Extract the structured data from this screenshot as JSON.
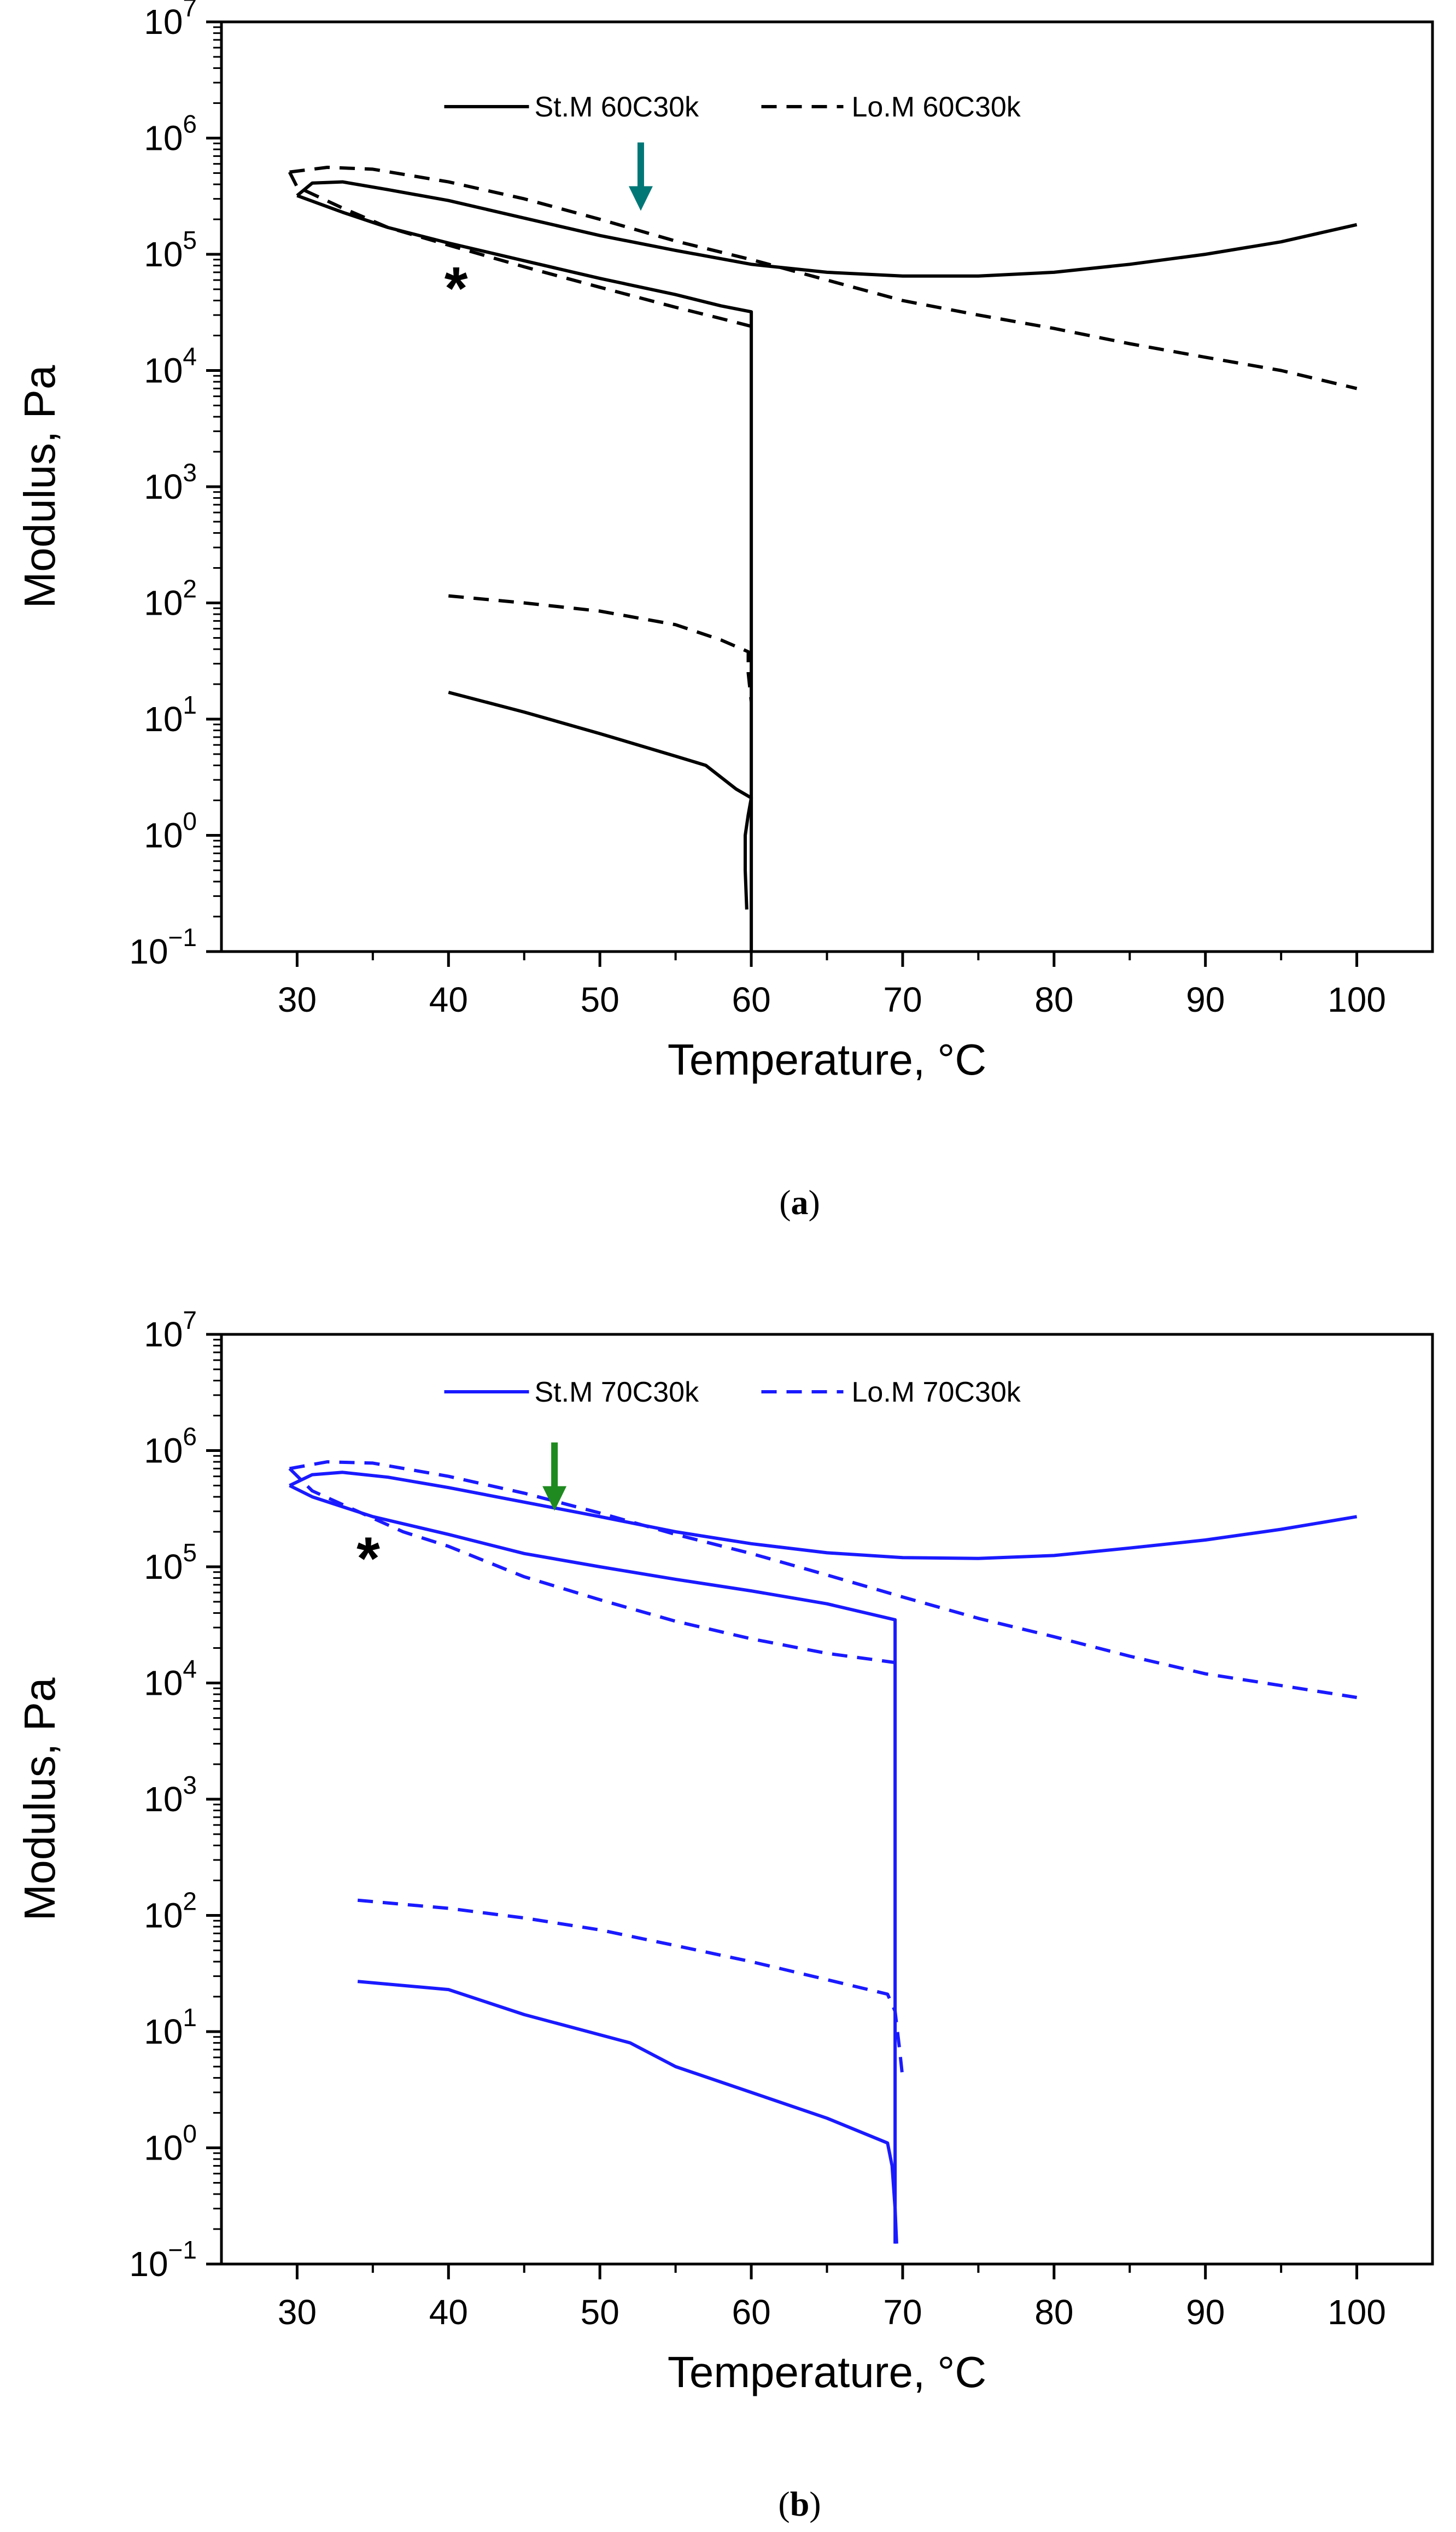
{
  "chart_data": [
    {
      "id": "a",
      "type": "line",
      "caption_open": "(",
      "caption_letter": "a",
      "caption_close": ")",
      "xlabel": "Temperature, °C",
      "ylabel": "Modulus, Pa",
      "xlim": [
        25,
        105
      ],
      "ylim_log10": [
        -1,
        7
      ],
      "x_ticks": [
        30,
        40,
        50,
        60,
        70,
        80,
        90,
        100
      ],
      "x_tick_labels": [
        "30",
        "40",
        "50",
        "60",
        "70",
        "80",
        "90",
        "100"
      ],
      "y_ticks_log10": [
        -1,
        0,
        1,
        2,
        3,
        4,
        5,
        6,
        7
      ],
      "y_tick_labels": [
        {
          "base": "10",
          "exp": "−1"
        },
        {
          "base": "10",
          "exp": "0"
        },
        {
          "base": "10",
          "exp": "1"
        },
        {
          "base": "10",
          "exp": "2"
        },
        {
          "base": "10",
          "exp": "3"
        },
        {
          "base": "10",
          "exp": "4"
        },
        {
          "base": "10",
          "exp": "5"
        },
        {
          "base": "10",
          "exp": "6"
        },
        {
          "base": "10",
          "exp": "7"
        }
      ],
      "line_color": "#000000",
      "arrow_color": "#007777",
      "arrow_at": {
        "x": 52.7,
        "y": 250000
      },
      "star_at": {
        "x": 40.5,
        "y": 65000
      },
      "legend_position": "top-center",
      "series": [
        {
          "name": "St.M 60C30k",
          "style": "solid",
          "segments": [
            [
              [
                30,
                320000
              ],
              [
                33,
                230000
              ],
              [
                36,
                170000
              ],
              [
                40,
                125000
              ],
              [
                45,
                88000
              ],
              [
                50,
                62000
              ],
              [
                55,
                45000
              ],
              [
                58,
                36000
              ],
              [
                60,
                32000
              ],
              [
                60,
                0.1
              ]
            ],
            [
              [
                30,
                320000
              ],
              [
                31,
                410000
              ],
              [
                33,
                420000
              ],
              [
                36,
                360000
              ],
              [
                40,
                290000
              ],
              [
                45,
                205000
              ],
              [
                50,
                145000
              ],
              [
                55,
                108000
              ],
              [
                60,
                82000
              ],
              [
                65,
                70000
              ],
              [
                70,
                65000
              ],
              [
                75,
                65000
              ],
              [
                80,
                70000
              ],
              [
                85,
                82000
              ],
              [
                90,
                100000
              ],
              [
                95,
                128000
              ],
              [
                100,
                180000
              ]
            ],
            [
              [
                40,
                17
              ],
              [
                45,
                11.5
              ],
              [
                50,
                7.5
              ],
              [
                55,
                4.8
              ],
              [
                57,
                4
              ],
              [
                59,
                2.5
              ],
              [
                60,
                2.1
              ],
              [
                59.8,
                1.5
              ],
              [
                59.6,
                1
              ],
              [
                59.6,
                0.5
              ],
              [
                59.7,
                0.23
              ]
            ]
          ]
        },
        {
          "name": "Lo.M 60C30k",
          "style": "dashed",
          "segments": [
            [
              [
                29.5,
                510000
              ],
              [
                32,
                560000
              ],
              [
                35,
                540000
              ],
              [
                40,
                420000
              ],
              [
                45,
                300000
              ],
              [
                50,
                200000
              ],
              [
                55,
                130000
              ],
              [
                60,
                90000
              ],
              [
                65,
                60000
              ],
              [
                70,
                40000
              ],
              [
                75,
                30000
              ],
              [
                80,
                23000
              ],
              [
                85,
                17000
              ],
              [
                90,
                13000
              ],
              [
                95,
                10000
              ],
              [
                100,
                7000
              ]
            ],
            [
              [
                29.5,
                510000
              ],
              [
                30,
                380000
              ],
              [
                33,
                250000
              ],
              [
                36,
                170000
              ],
              [
                40,
                120000
              ],
              [
                45,
                78000
              ],
              [
                50,
                52000
              ],
              [
                55,
                35000
              ],
              [
                58,
                28000
              ],
              [
                60,
                24000
              ]
            ],
            [
              [
                40,
                115
              ],
              [
                45,
                100
              ],
              [
                50,
                85
              ],
              [
                55,
                65
              ],
              [
                58,
                48
              ],
              [
                59.8,
                38
              ],
              [
                59.8,
                25
              ],
              [
                60,
                14
              ]
            ]
          ]
        }
      ]
    },
    {
      "id": "b",
      "type": "line",
      "caption_open": "(",
      "caption_letter": "b",
      "caption_close": ")",
      "xlabel": "Temperature, °C",
      "ylabel": "Modulus, Pa",
      "xlim": [
        25,
        105
      ],
      "ylim_log10": [
        -1,
        7
      ],
      "x_ticks": [
        30,
        40,
        50,
        60,
        70,
        80,
        90,
        100
      ],
      "x_tick_labels": [
        "30",
        "40",
        "50",
        "60",
        "70",
        "80",
        "90",
        "100"
      ],
      "y_ticks_log10": [
        -1,
        0,
        1,
        2,
        3,
        4,
        5,
        6,
        7
      ],
      "y_tick_labels": [
        {
          "base": "10",
          "exp": "−1"
        },
        {
          "base": "10",
          "exp": "0"
        },
        {
          "base": "10",
          "exp": "1"
        },
        {
          "base": "10",
          "exp": "2"
        },
        {
          "base": "10",
          "exp": "3"
        },
        {
          "base": "10",
          "exp": "4"
        },
        {
          "base": "10",
          "exp": "5"
        },
        {
          "base": "10",
          "exp": "6"
        },
        {
          "base": "10",
          "exp": "7"
        }
      ],
      "line_color": "#1a1aff",
      "arrow_color": "#1f8a1f",
      "arrow_at": {
        "x": 47,
        "y": 320000
      },
      "star_at": {
        "x": 34.7,
        "y": 150000
      },
      "legend_position": "top-center",
      "series": [
        {
          "name": "St.M 70C30k",
          "style": "solid",
          "segments": [
            [
              [
                29.5,
                500000
              ],
              [
                31,
                400000
              ],
              [
                35,
                270000
              ],
              [
                40,
                190000
              ],
              [
                45,
                130000
              ],
              [
                50,
                100000
              ],
              [
                55,
                78000
              ],
              [
                60,
                62000
              ],
              [
                65,
                48000
              ],
              [
                69.5,
                35000
              ],
              [
                69.5,
                0.15
              ]
            ],
            [
              [
                29.5,
                500000
              ],
              [
                31,
                620000
              ],
              [
                33,
                650000
              ],
              [
                36,
                590000
              ],
              [
                40,
                480000
              ],
              [
                45,
                360000
              ],
              [
                50,
                270000
              ],
              [
                55,
                200000
              ],
              [
                60,
                158000
              ],
              [
                65,
                132000
              ],
              [
                70,
                120000
              ],
              [
                75,
                118000
              ],
              [
                80,
                125000
              ],
              [
                85,
                145000
              ],
              [
                90,
                170000
              ],
              [
                95,
                210000
              ],
              [
                100,
                270000
              ]
            ],
            [
              [
                34,
                27
              ],
              [
                40,
                23
              ],
              [
                45,
                14
              ],
              [
                52,
                8
              ],
              [
                55,
                5
              ],
              [
                60,
                3
              ],
              [
                65,
                1.8
              ],
              [
                69,
                1.1
              ],
              [
                69.3,
                0.7
              ],
              [
                69.5,
                0.3
              ],
              [
                69.6,
                0.15
              ]
            ]
          ]
        },
        {
          "name": "Lo.M 70C30k",
          "style": "dashed",
          "segments": [
            [
              [
                29.5,
                700000
              ],
              [
                32,
                800000
              ],
              [
                35,
                780000
              ],
              [
                40,
                600000
              ],
              [
                45,
                430000
              ],
              [
                50,
                290000
              ],
              [
                55,
                190000
              ],
              [
                60,
                130000
              ],
              [
                65,
                85000
              ],
              [
                70,
                55000
              ],
              [
                75,
                36000
              ],
              [
                80,
                25000
              ],
              [
                85,
                17000
              ],
              [
                90,
                12000
              ],
              [
                95,
                9500
              ],
              [
                100,
                7500
              ]
            ],
            [
              [
                29.5,
                700000
              ],
              [
                31,
                450000
              ],
              [
                34,
                300000
              ],
              [
                37,
                200000
              ],
              [
                40,
                150000
              ],
              [
                45,
                82000
              ],
              [
                50,
                52000
              ],
              [
                55,
                34000
              ],
              [
                60,
                24000
              ],
              [
                65,
                18000
              ],
              [
                69.5,
                15000
              ]
            ],
            [
              [
                34,
                135
              ],
              [
                40,
                115
              ],
              [
                45,
                95
              ],
              [
                50,
                75
              ],
              [
                55,
                55
              ],
              [
                60,
                40
              ],
              [
                65,
                28
              ],
              [
                69,
                21
              ],
              [
                69.5,
                15
              ],
              [
                69.8,
                7
              ],
              [
                70,
                4
              ]
            ]
          ]
        }
      ]
    }
  ]
}
